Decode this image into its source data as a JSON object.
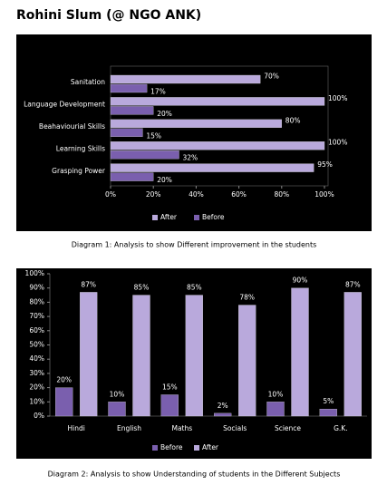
{
  "title": "Rohini Slum (@ NGO ANK)",
  "chart_data": [
    {
      "type": "hbar",
      "caption": "Diagram 1: Analysis to show Different improvement in the students",
      "categories": [
        "Sanitation",
        "Language Development",
        "Beahaviourial Skills",
        "Learning Skills",
        "Grasping Power"
      ],
      "series": [
        {
          "name": "After",
          "color": "#b9a9dc",
          "values": [
            70,
            100,
            80,
            100,
            95
          ],
          "value_labels": [
            "70%",
            "100%",
            "80%",
            "100%",
            "95%"
          ]
        },
        {
          "name": "Before",
          "color": "#7a5fae",
          "values": [
            17,
            20,
            15,
            32,
            20
          ],
          "value_labels": [
            "17%",
            "20%",
            "15%",
            "32%",
            "20%"
          ]
        }
      ],
      "xlim": [
        0,
        100
      ],
      "xticks": [
        {
          "value": 0,
          "label": "0%"
        },
        {
          "value": 20,
          "label": "20%"
        },
        {
          "value": 40,
          "label": "40%"
        },
        {
          "value": 60,
          "label": "60%"
        },
        {
          "value": 80,
          "label": "80%"
        },
        {
          "value": 100,
          "label": "100%"
        }
      ],
      "legend": "bottom"
    },
    {
      "type": "bar",
      "caption": "Diagram 2: Analysis to show Understanding of students in the Different Subjects",
      "categories": [
        "Hindi",
        "English",
        "Maths",
        "Socials",
        "Science",
        "G.K."
      ],
      "series": [
        {
          "name": "Before",
          "color": "#7a5fae",
          "values": [
            20,
            10,
            15,
            2,
            10,
            5
          ],
          "value_labels": [
            "20%",
            "10%",
            "15%",
            "2%",
            "10%",
            "5%"
          ]
        },
        {
          "name": "After",
          "color": "#b9a9dc",
          "values": [
            87,
            85,
            85,
            78,
            90,
            87
          ],
          "value_labels": [
            "87%",
            "85%",
            "85%",
            "78%",
            "90%",
            "87%"
          ]
        }
      ],
      "ylim": [
        0,
        100
      ],
      "yticks": [
        {
          "value": 0,
          "label": "0%"
        },
        {
          "value": 10,
          "label": "10%"
        },
        {
          "value": 20,
          "label": "20%"
        },
        {
          "value": 30,
          "label": "30%"
        },
        {
          "value": 40,
          "label": "40%"
        },
        {
          "value": 50,
          "label": "50%"
        },
        {
          "value": 60,
          "label": "60%"
        },
        {
          "value": 70,
          "label": "70%"
        },
        {
          "value": 80,
          "label": "80%"
        },
        {
          "value": 90,
          "label": "90%"
        },
        {
          "value": 100,
          "label": "100%"
        }
      ],
      "legend": "bottom"
    }
  ]
}
